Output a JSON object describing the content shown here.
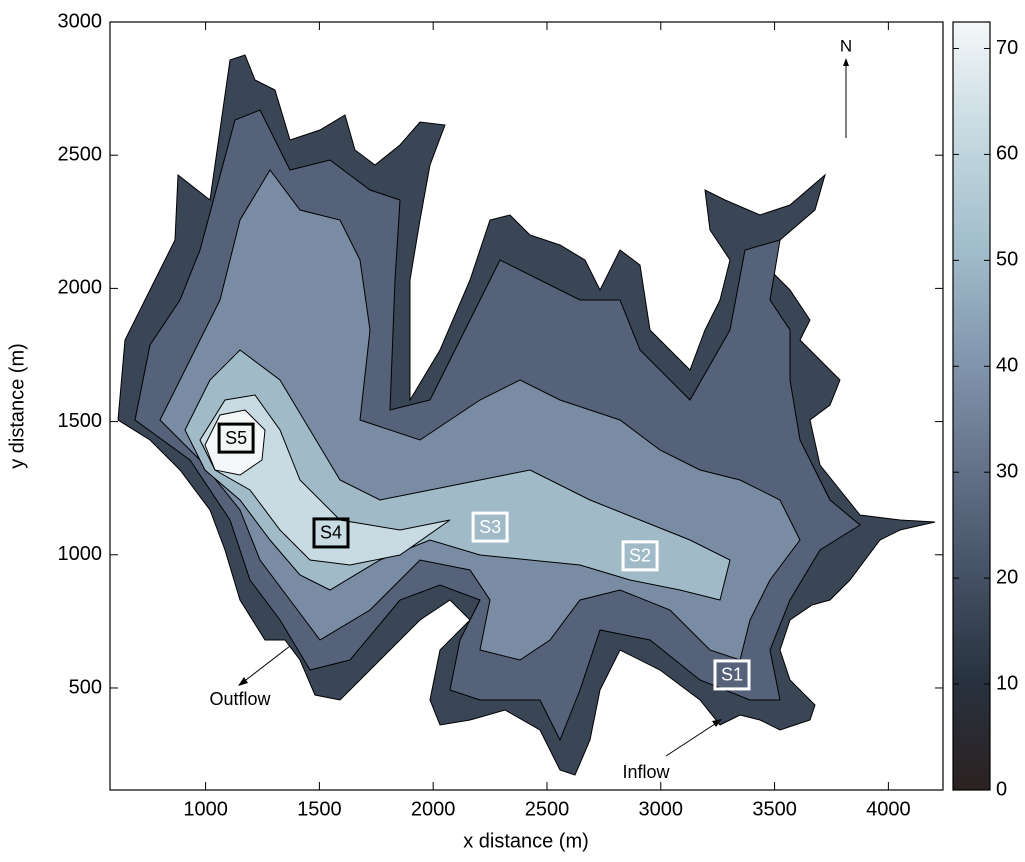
{
  "chart_data": {
    "type": "contour",
    "x_label": "x distance (m)",
    "y_label": "y distance (m)",
    "xlim": [
      580,
      4240
    ],
    "xticks": [
      1000,
      1500,
      2000,
      2500,
      3000,
      3500,
      4000
    ],
    "ylim": [
      117,
      3000
    ],
    "yticks": [
      500,
      1000,
      1500,
      2000,
      2500,
      3000
    ],
    "grid": false,
    "colorbar": {
      "lim": [
        0,
        72.5
      ],
      "ticks": [
        0,
        10,
        20,
        30,
        40,
        50,
        60,
        70
      ],
      "colormap": [
        "#2b2121",
        "#28323f",
        "#465266",
        "#66748c",
        "#8499b0",
        "#a3bfcc",
        "#c6dae1",
        "#f4f7f8"
      ]
    },
    "sites": [
      {
        "label": "S5",
        "x": 1134,
        "y": 1438,
        "color": "#000000"
      },
      {
        "label": "S4",
        "x": 1551,
        "y": 1082,
        "color": "#000000"
      },
      {
        "label": "S3",
        "x": 2250,
        "y": 1104,
        "color": "#ffffff"
      },
      {
        "label": "S2",
        "x": 2909,
        "y": 996,
        "color": "#ffffff"
      },
      {
        "label": "S1",
        "x": 3313,
        "y": 549,
        "color": "#ffffff"
      }
    ],
    "annotations": [
      "N",
      "Outflow",
      "Inflow"
    ]
  }
}
